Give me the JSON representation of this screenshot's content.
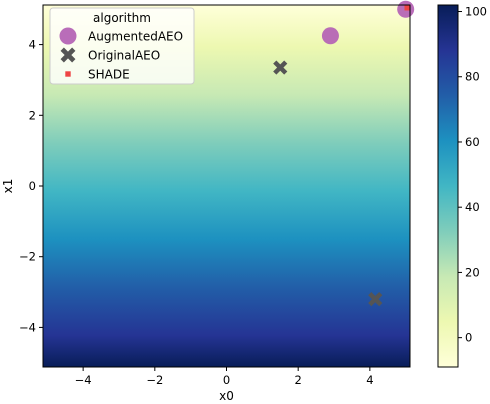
{
  "chart_data": {
    "type": "scatter",
    "background": "heatmap",
    "xlabel": "x0",
    "ylabel": "x1",
    "xlim": [
      -5.12,
      5.12
    ],
    "ylim": [
      -5.12,
      5.12
    ],
    "xticks": [
      -4,
      -2,
      0,
      2,
      4
    ],
    "xtick_labels": [
      "−4",
      "−2",
      "0",
      "2",
      "4"
    ],
    "yticks": [
      -4,
      -2,
      0,
      2,
      4
    ],
    "ytick_labels": [
      "−4",
      "−2",
      "0",
      "2",
      "4"
    ],
    "grid": false,
    "colorbar": {
      "colormap": "YlGnBu",
      "range": [
        -9,
        102
      ],
      "ticks": [
        0,
        20,
        40,
        60,
        80,
        100
      ],
      "tick_labels": [
        "0",
        "20",
        "40",
        "60",
        "80",
        "100"
      ]
    },
    "legend": {
      "title": "algorithm",
      "placement": "top-left"
    },
    "series": [
      {
        "name": "AugmentedAEO",
        "marker": "circle",
        "color": "#b565b5",
        "points": [
          {
            "x": 2.9,
            "y": 4.25
          },
          {
            "x": 5.0,
            "y": 5.0
          }
        ]
      },
      {
        "name": "OriginalAEO",
        "marker": "x",
        "color": "#555555",
        "points": [
          {
            "x": 1.5,
            "y": 3.35
          },
          {
            "x": 4.15,
            "y": -3.2
          }
        ]
      },
      {
        "name": "SHADE",
        "marker": "square",
        "color": "#ee4444",
        "points": [
          {
            "x": 5.05,
            "y": 5.05
          }
        ]
      }
    ]
  }
}
